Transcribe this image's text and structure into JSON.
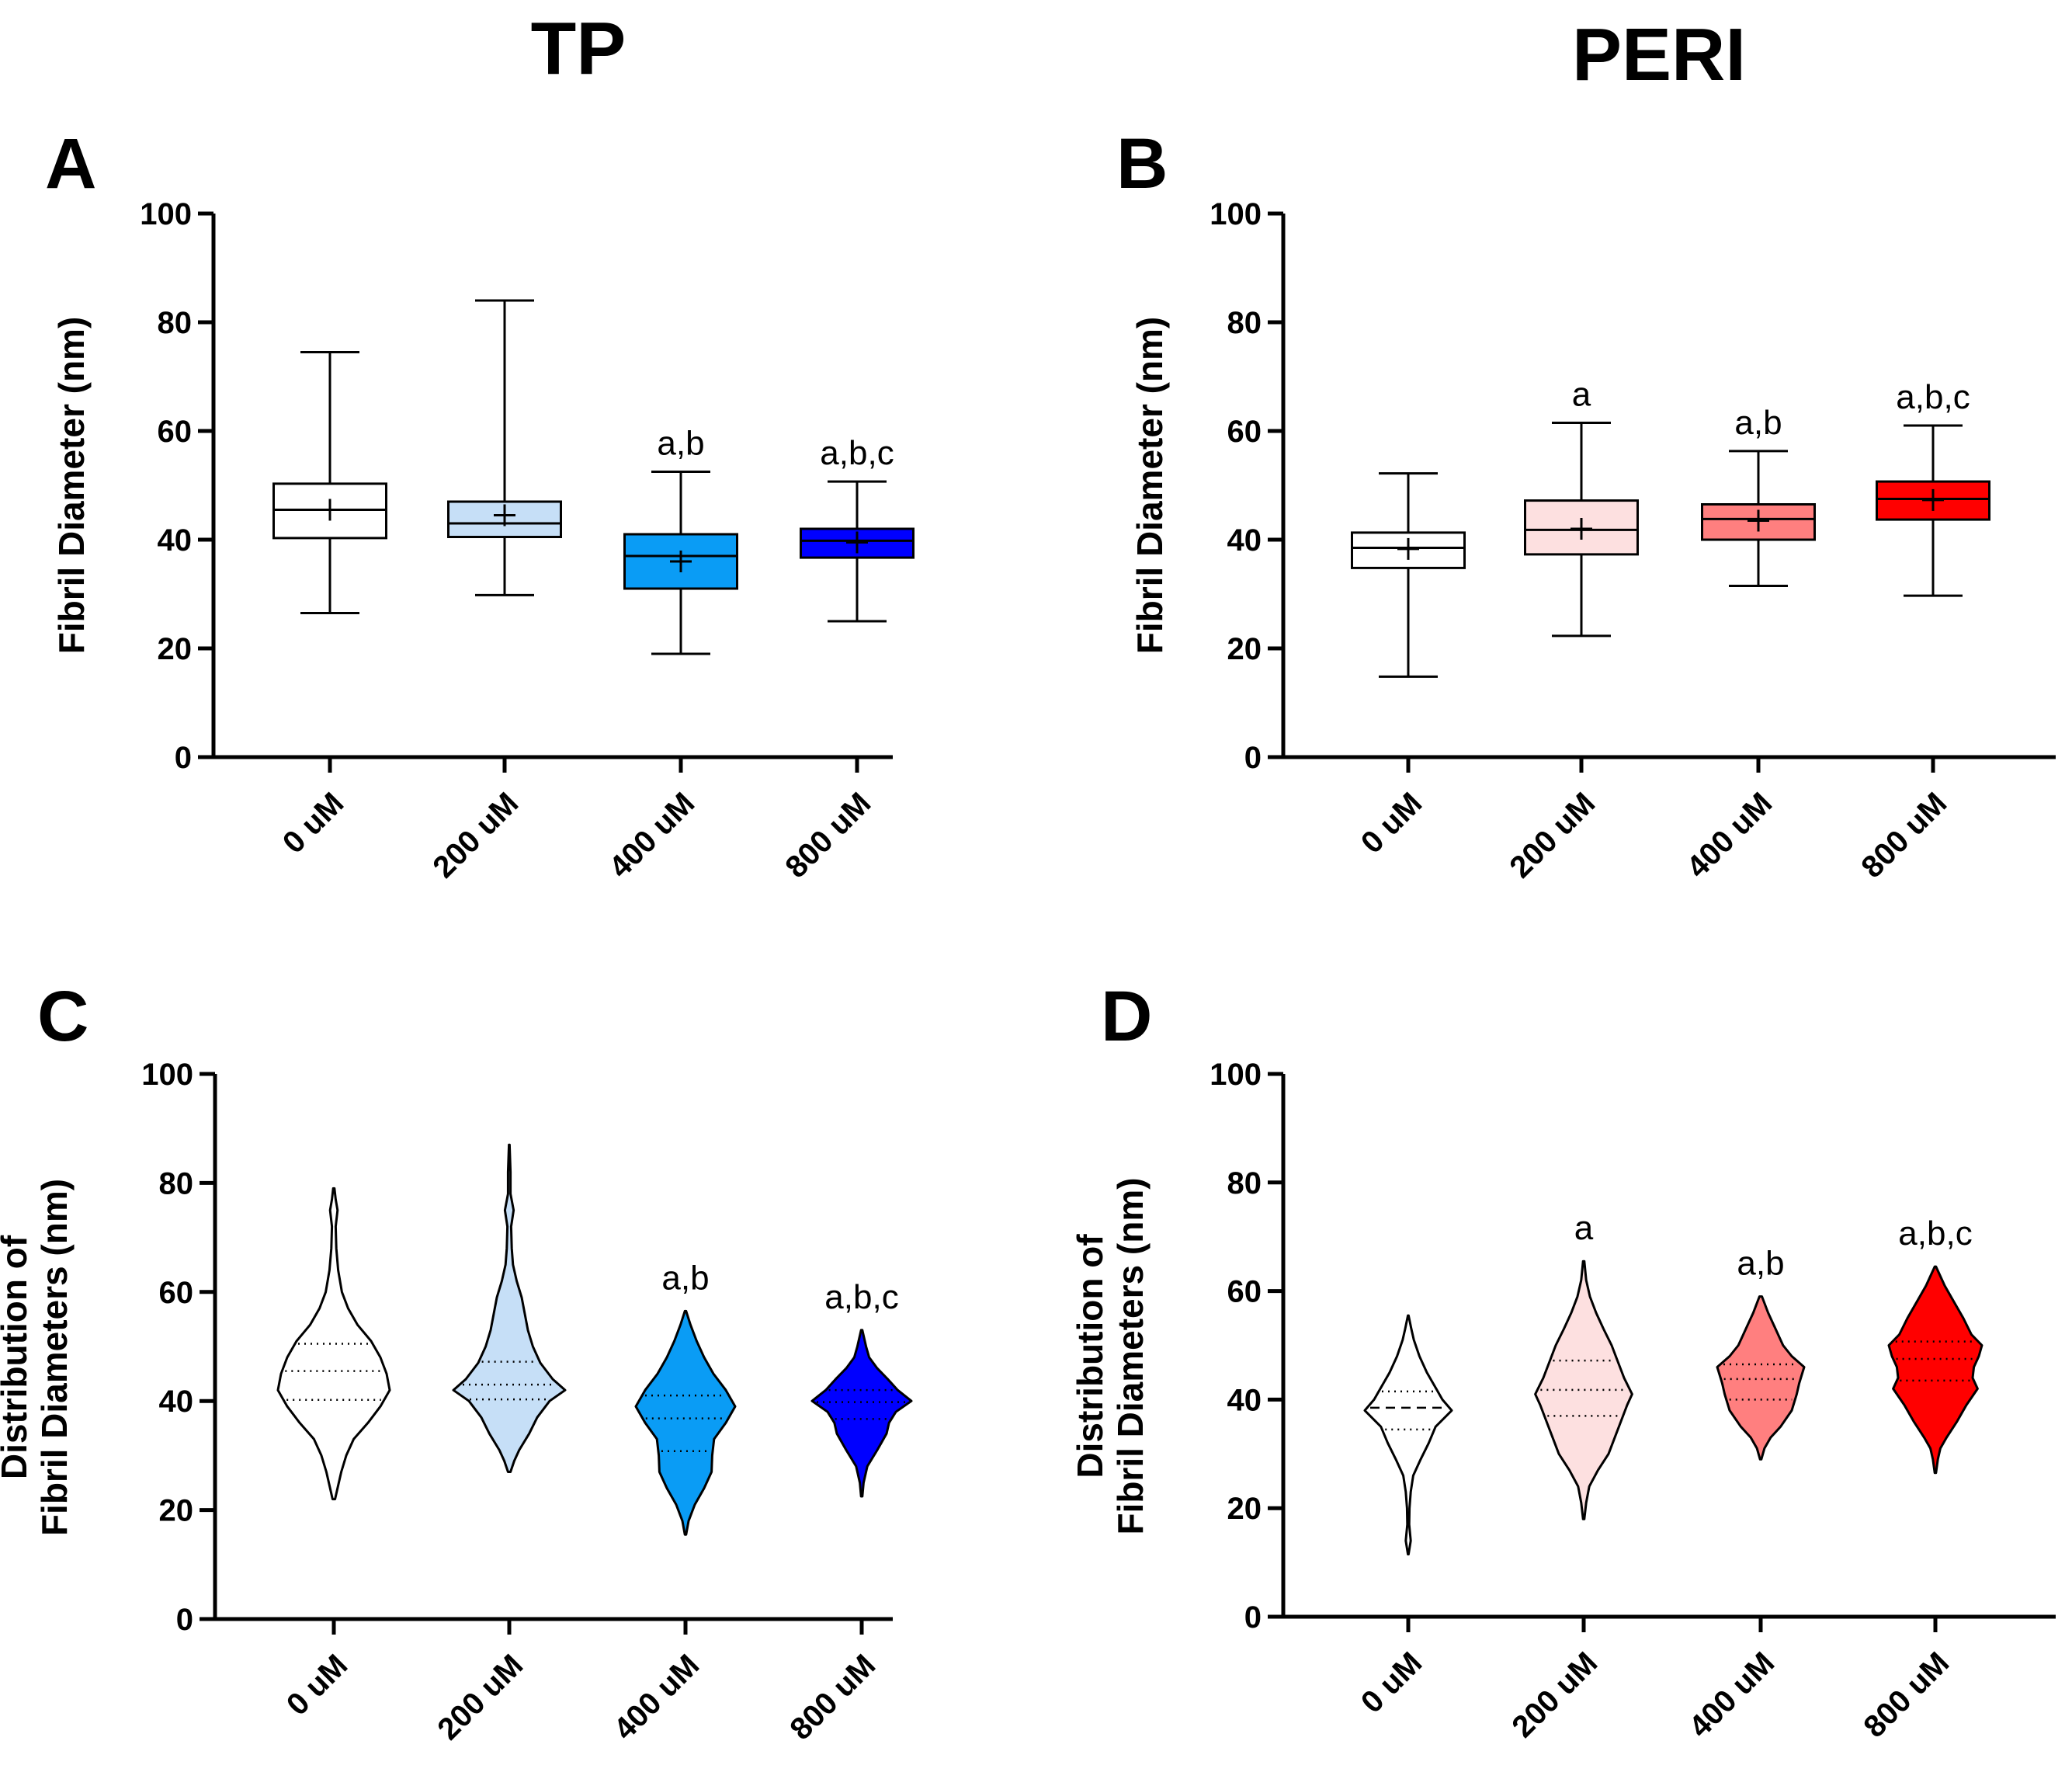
{
  "column_titles": [
    "TP",
    "PERI"
  ],
  "chart_data": [
    {
      "panel": "A",
      "type": "box",
      "group": "TP",
      "ylabel": [
        "Fibril Diameter (nm)"
      ],
      "ylim": [
        0,
        100
      ],
      "yticks": [
        0,
        20,
        40,
        60,
        80,
        100
      ],
      "categories": [
        "0 uM",
        "200 uM",
        "400 uM",
        "800 uM"
      ],
      "colors": [
        "#ffffff",
        "#c6dff7",
        "#0a9cf5",
        "#0000ff"
      ],
      "annotations": [
        "",
        "",
        "a,b",
        "a,b,c"
      ],
      "boxes": [
        {
          "min": 26.5,
          "q1": 40.3,
          "median": 45.5,
          "q3": 50.3,
          "max": 74.5,
          "mean": 45.5
        },
        {
          "min": 29.8,
          "q1": 40.5,
          "median": 43.0,
          "q3": 47.0,
          "max": 84.0,
          "mean": 44.5
        },
        {
          "min": 19.0,
          "q1": 31.0,
          "median": 37.0,
          "q3": 41.0,
          "max": 52.5,
          "mean": 36.0
        },
        {
          "min": 25.0,
          "q1": 36.7,
          "median": 39.8,
          "q3": 42.0,
          "max": 50.7,
          "mean": 39.5
        }
      ]
    },
    {
      "panel": "B",
      "type": "box",
      "group": "PERI",
      "ylabel": [
        "Fibril Diameter (nm)"
      ],
      "ylim": [
        0,
        100
      ],
      "yticks": [
        0,
        20,
        40,
        60,
        80,
        100
      ],
      "categories": [
        "0 uM",
        "200 uM",
        "400 uM",
        "800 uM"
      ],
      "colors": [
        "#ffffff",
        "#fde0e0",
        "#ff7f7f",
        "#ff0000"
      ],
      "annotations": [
        "",
        "a",
        "a,b",
        "a,b,c"
      ],
      "boxes": [
        {
          "min": 14.8,
          "q1": 34.8,
          "median": 38.5,
          "q3": 41.3,
          "max": 52.2,
          "mean": 38.3
        },
        {
          "min": 22.3,
          "q1": 37.3,
          "median": 41.8,
          "q3": 47.2,
          "max": 61.5,
          "mean": 42.0
        },
        {
          "min": 31.5,
          "q1": 40.0,
          "median": 43.8,
          "q3": 46.5,
          "max": 56.3,
          "mean": 43.5
        },
        {
          "min": 29.7,
          "q1": 43.7,
          "median": 47.5,
          "q3": 50.7,
          "max": 61.0,
          "mean": 47.3
        }
      ]
    },
    {
      "panel": "C",
      "type": "violin",
      "group": "TP",
      "ylabel": [
        "Distribution of",
        "Fibril Diameters (nm)"
      ],
      "ylim": [
        0,
        100
      ],
      "yticks": [
        0,
        20,
        40,
        60,
        80,
        100
      ],
      "categories": [
        "0 uM",
        "200 uM",
        "400 uM",
        "800 uM"
      ],
      "colors": [
        "#ffffff",
        "#c6dff7",
        "#0a9cf5",
        "#0000ff"
      ],
      "annotations": [
        "",
        "",
        "a,b",
        "a,b,c"
      ],
      "violins": [
        {
          "profile": [
            [
              22,
              0.2
            ],
            [
              24,
              0.6
            ],
            [
              27,
              1.2
            ],
            [
              30,
              2.0
            ],
            [
              33,
              3.2
            ],
            [
              36,
              5.5
            ],
            [
              39,
              7.5
            ],
            [
              42,
              9.0
            ],
            [
              45,
              8.5
            ],
            [
              48,
              7.5
            ],
            [
              51,
              6.0
            ],
            [
              54,
              3.8
            ],
            [
              57,
              2.3
            ],
            [
              60,
              1.3
            ],
            [
              64,
              0.7
            ],
            [
              68,
              0.4
            ],
            [
              72,
              0.3
            ],
            [
              75,
              0.6
            ],
            [
              77,
              0.3
            ],
            [
              79,
              0.1
            ]
          ],
          "q1": 40.2,
          "median": 45.5,
          "q3": 50.5
        },
        {
          "profile": [
            [
              27,
              0.2
            ],
            [
              29,
              0.8
            ],
            [
              31,
              1.6
            ],
            [
              34,
              3.2
            ],
            [
              37,
              4.5
            ],
            [
              40,
              6.5
            ],
            [
              42,
              9.0
            ],
            [
              44,
              7.0
            ],
            [
              47,
              5.0
            ],
            [
              50,
              3.8
            ],
            [
              53,
              3.0
            ],
            [
              56,
              2.5
            ],
            [
              59,
              2.0
            ],
            [
              62,
              1.2
            ],
            [
              65,
              0.6
            ],
            [
              68,
              0.4
            ],
            [
              72,
              0.3
            ],
            [
              75,
              0.7
            ],
            [
              78,
              0.2
            ],
            [
              82,
              0.2
            ],
            [
              87,
              0.05
            ]
          ],
          "q1": 40.3,
          "median": 43.0,
          "q3": 47.2
        },
        {
          "profile": [
            [
              15.5,
              0.1
            ],
            [
              18,
              0.5
            ],
            [
              21,
              1.5
            ],
            [
              24,
              3.0
            ],
            [
              27,
              4.2
            ],
            [
              30,
              4.3
            ],
            [
              33,
              4.6
            ],
            [
              36,
              6.5
            ],
            [
              39,
              8.0
            ],
            [
              42,
              6.5
            ],
            [
              45,
              4.5
            ],
            [
              48,
              3.0
            ],
            [
              51,
              1.8
            ],
            [
              54,
              0.8
            ],
            [
              56.5,
              0.1
            ]
          ],
          "q1": 30.8,
          "median": 36.8,
          "q3": 41.0
        },
        {
          "profile": [
            [
              22.5,
              0.1
            ],
            [
              25,
              0.3
            ],
            [
              28,
              0.9
            ],
            [
              31,
              2.5
            ],
            [
              34,
              4.0
            ],
            [
              36,
              4.4
            ],
            [
              38,
              5.5
            ],
            [
              40,
              8.0
            ],
            [
              42,
              5.8
            ],
            [
              44,
              4.2
            ],
            [
              46,
              2.5
            ],
            [
              48,
              1.2
            ],
            [
              50,
              0.7
            ],
            [
              53,
              0.1
            ]
          ],
          "q1": 36.7,
          "median": 39.8,
          "q3": 42.0
        }
      ]
    },
    {
      "panel": "D",
      "type": "violin",
      "group": "PERI",
      "ylabel": [
        "Distribution of",
        "Fibril Diameters (nm)"
      ],
      "ylim": [
        0,
        100
      ],
      "yticks": [
        0,
        20,
        40,
        60,
        80,
        100
      ],
      "categories": [
        "0 uM",
        "200 uM",
        "400 uM",
        "800 uM"
      ],
      "colors": [
        "#ffffff",
        "#fde0e0",
        "#ff7f7f",
        "#ff0000"
      ],
      "annotations": [
        "",
        "a",
        "a,b",
        "a,b,c"
      ],
      "violins": [
        {
          "profile": [
            [
              11.5,
              0.05
            ],
            [
              14,
              0.4
            ],
            [
              17,
              0.15
            ],
            [
              20,
              0.2
            ],
            [
              23,
              0.4
            ],
            [
              26,
              0.8
            ],
            [
              29,
              2.0
            ],
            [
              32,
              3.3
            ],
            [
              35,
              4.4
            ],
            [
              38,
              7.0
            ],
            [
              40,
              5.5
            ],
            [
              42,
              4.5
            ],
            [
              45,
              3.0
            ],
            [
              48,
              1.8
            ],
            [
              51,
              0.9
            ],
            [
              53,
              0.5
            ],
            [
              55.5,
              0.05
            ]
          ],
          "q1": 34.5,
          "median": 38.5,
          "q3": 41.5
        },
        {
          "profile": [
            [
              18,
              0.1
            ],
            [
              21,
              0.4
            ],
            [
              24,
              0.9
            ],
            [
              27,
              2.3
            ],
            [
              30,
              4.0
            ],
            [
              33,
              5.0
            ],
            [
              36,
              6.0
            ],
            [
              39,
              7.0
            ],
            [
              41,
              7.8
            ],
            [
              44,
              6.5
            ],
            [
              47,
              5.5
            ],
            [
              50,
              4.5
            ],
            [
              53,
              3.2
            ],
            [
              56,
              2.0
            ],
            [
              59,
              1.0
            ],
            [
              62,
              0.4
            ],
            [
              65.5,
              0.1
            ]
          ],
          "q1": 37.0,
          "median": 41.8,
          "q3": 47.2
        },
        {
          "profile": [
            [
              29,
              0.1
            ],
            [
              31,
              0.6
            ],
            [
              33,
              1.6
            ],
            [
              35,
              3.2
            ],
            [
              38,
              5.0
            ],
            [
              41,
              5.8
            ],
            [
              43,
              6.2
            ],
            [
              46,
              7.0
            ],
            [
              48,
              5.0
            ],
            [
              50,
              3.6
            ],
            [
              53,
              2.4
            ],
            [
              56,
              1.2
            ],
            [
              59,
              0.2
            ]
          ],
          "q1": 40.0,
          "median": 43.8,
          "q3": 46.5
        },
        {
          "profile": [
            [
              26.5,
              0.1
            ],
            [
              29,
              0.4
            ],
            [
              31,
              0.8
            ],
            [
              33,
              1.8
            ],
            [
              36,
              3.5
            ],
            [
              39,
              5.0
            ],
            [
              42,
              6.8
            ],
            [
              44,
              6.0
            ],
            [
              46,
              6.2
            ],
            [
              48,
              7.0
            ],
            [
              50,
              7.5
            ],
            [
              52,
              5.8
            ],
            [
              55,
              4.5
            ],
            [
              58,
              3.0
            ],
            [
              61,
              1.5
            ],
            [
              63,
              0.7
            ],
            [
              64.5,
              0.1
            ]
          ],
          "q1": 43.5,
          "median": 47.5,
          "q3": 50.7
        }
      ]
    }
  ]
}
